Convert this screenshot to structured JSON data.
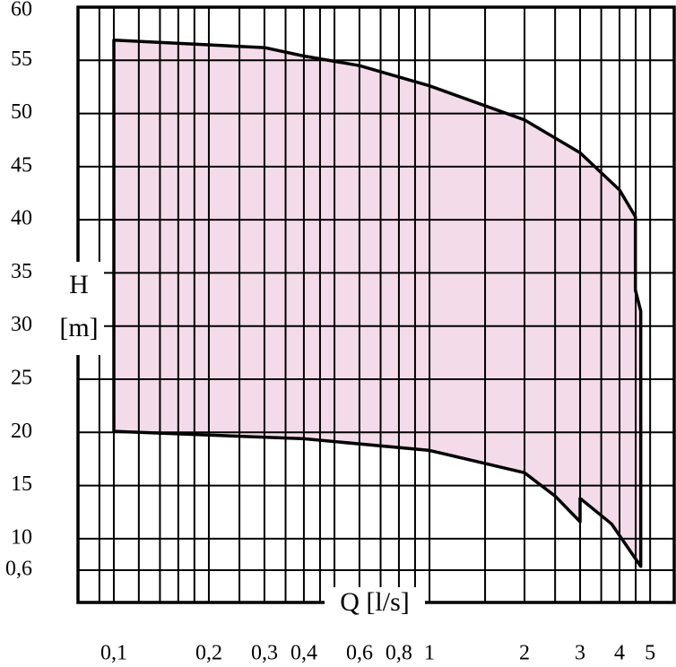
{
  "chart_data": {
    "type": "area",
    "x_label": "Q [l/s]",
    "y_label": "H",
    "y_unit": "[m]",
    "annotation": "0,6",
    "log_x": true,
    "grid": true,
    "color": "#f3dbe9",
    "x": [
      0.1,
      0.3,
      0.4,
      0.6,
      1,
      2,
      3,
      4,
      4.49,
      4.49,
      4.67,
      4.67,
      3.77,
      3,
      3,
      2.5,
      2,
      1,
      0.4,
      0.1
    ],
    "values": [
      56.9,
      56.2,
      55.4,
      54.5,
      52.6,
      49.4,
      46.3,
      42.8,
      40.3,
      33.4,
      31.4,
      7.4,
      11.4,
      13.8,
      11.6,
      14,
      16.2,
      18.3,
      19.4,
      20.1
    ],
    "xlim": [
      0.077,
      5.96
    ],
    "ylim": [
      4,
      60
    ],
    "xticks": [
      {
        "value": 0.1,
        "label": "0,1"
      },
      {
        "value": 0.2,
        "label": "0,2"
      },
      {
        "value": 0.3,
        "label": "0,3"
      },
      {
        "value": 0.4,
        "label": "0,4"
      },
      {
        "value": 0.6,
        "label": "0,6"
      },
      {
        "value": 0.8,
        "label": "0,8"
      },
      1,
      2,
      3,
      4,
      5
    ],
    "xgrid": [
      0.09,
      0.1,
      0.12,
      0.14,
      0.16,
      0.18,
      0.2,
      0.25,
      0.3,
      0.35,
      0.4,
      0.45,
      0.5,
      0.6,
      0.7,
      0.8,
      0.9,
      1,
      1.5,
      2,
      2.5,
      3,
      3.5,
      4,
      4.5,
      5
    ],
    "yticks": [
      10,
      15,
      20,
      25,
      30,
      35,
      40,
      45,
      50,
      55,
      60
    ]
  }
}
